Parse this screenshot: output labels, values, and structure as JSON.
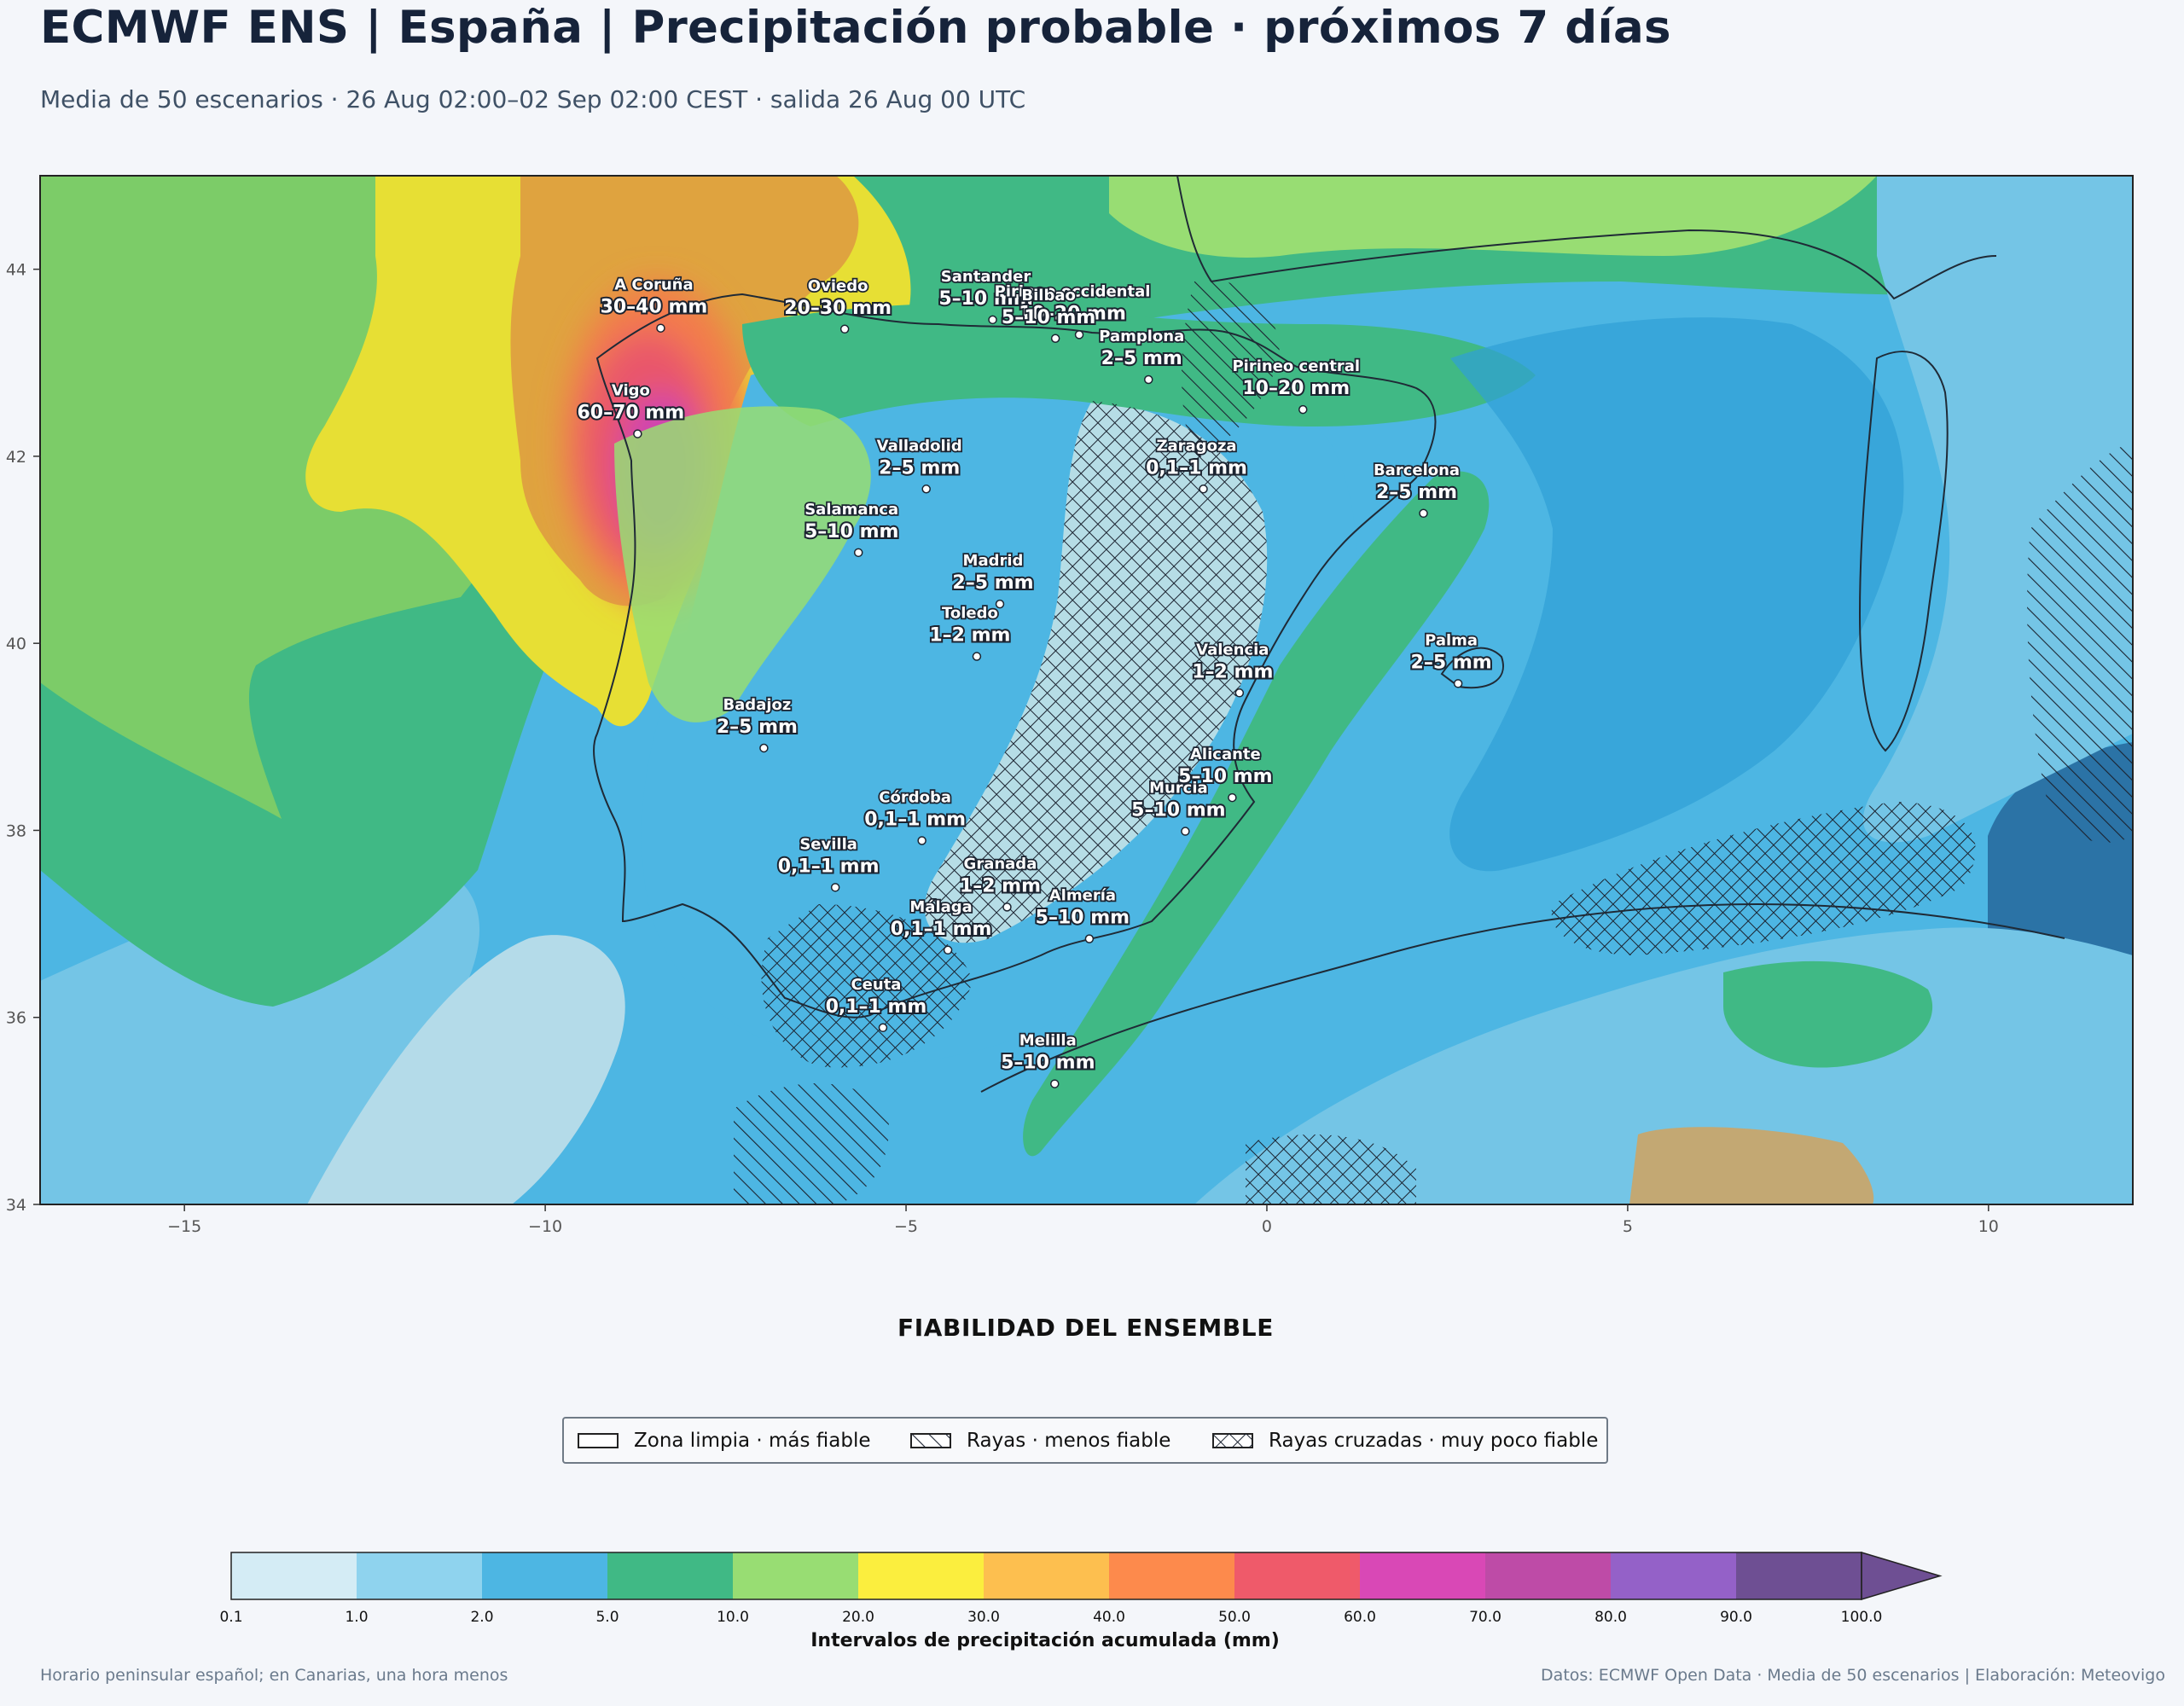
{
  "title": "ECMWF ENS | España | Precipitación probable · próximos 7 días",
  "subtitle": "Media de 50 escenarios · 26 Aug 02:00–02 Sep 02:00 CEST · salida 26 Aug 00 UTC",
  "map": {
    "lon_range": [
      -17,
      12
    ],
    "lat_range": [
      34,
      45
    ],
    "x_ticks": [
      "−15",
      "−10",
      "−5",
      "0",
      "5",
      "10"
    ],
    "x_tick_values": [
      -15,
      -10,
      -5,
      0,
      5,
      10
    ],
    "y_ticks": [
      "34",
      "36",
      "38",
      "40",
      "42",
      "44"
    ],
    "y_tick_values": [
      34,
      36,
      38,
      40,
      42,
      44
    ],
    "background_color": "#5bbde4",
    "sea_dark_color": "#2b73a6",
    "land_outline_color": "#1f2a36"
  },
  "cities": [
    {
      "name": "A Coruña",
      "value": "30–40 mm",
      "lon": -8.4,
      "lat": 43.37
    },
    {
      "name": "Oviedo",
      "value": "20–30 mm",
      "lon": -5.85,
      "lat": 43.36
    },
    {
      "name": "Santander",
      "value": "5–10 mm",
      "lon": -3.8,
      "lat": 43.46
    },
    {
      "name": "Pirineo occidental",
      "value": "10–20 mm",
      "lon": -2.6,
      "lat": 43.3
    },
    {
      "name": "Pamplona",
      "value": "2–5 mm",
      "lon": -1.64,
      "lat": 42.82
    },
    {
      "name": "Pirineo central",
      "value": "10–20 mm",
      "lon": 0.5,
      "lat": 42.5
    },
    {
      "name": "Bilbao",
      "value": "5–10 mm",
      "lon": -2.93,
      "lat": 43.26
    },
    {
      "name": "Vigo",
      "value": "60–70 mm",
      "lon": -8.72,
      "lat": 42.24
    },
    {
      "name": "Valladolid",
      "value": "2–5 mm",
      "lon": -4.72,
      "lat": 41.65
    },
    {
      "name": "Zaragoza",
      "value": "0,1–1 mm",
      "lon": -0.88,
      "lat": 41.65
    },
    {
      "name": "Barcelona",
      "value": "2–5 mm",
      "lon": 2.17,
      "lat": 41.39
    },
    {
      "name": "Salamanca",
      "value": "5–10 mm",
      "lon": -5.66,
      "lat": 40.97
    },
    {
      "name": "Madrid",
      "value": "2–5 mm",
      "lon": -3.7,
      "lat": 40.42
    },
    {
      "name": "Valencia",
      "value": "1–2 mm",
      "lon": -0.38,
      "lat": 39.47
    },
    {
      "name": "Palma",
      "value": "2–5 mm",
      "lon": 2.65,
      "lat": 39.57
    },
    {
      "name": "Toledo",
      "value": "1–2 mm",
      "lon": -4.02,
      "lat": 39.86
    },
    {
      "name": "Badajoz",
      "value": "2–5 mm",
      "lon": -6.97,
      "lat": 38.88
    },
    {
      "name": "Córdoba",
      "value": "0,1–1 mm",
      "lon": -4.78,
      "lat": 37.89
    },
    {
      "name": "Alicante",
      "value": "5–10 mm",
      "lon": -0.48,
      "lat": 38.35
    },
    {
      "name": "Murcia",
      "value": "5–10 mm",
      "lon": -1.13,
      "lat": 37.99
    },
    {
      "name": "Granada",
      "value": "1–2 mm",
      "lon": -3.6,
      "lat": 37.18
    },
    {
      "name": "Sevilla",
      "value": "0,1–1 mm",
      "lon": -5.98,
      "lat": 37.39
    },
    {
      "name": "Almería",
      "value": "5–10 mm",
      "lon": -2.46,
      "lat": 36.84
    },
    {
      "name": "Málaga",
      "value": "0,1–1 mm",
      "lon": -4.42,
      "lat": 36.72
    },
    {
      "name": "Ceuta",
      "value": "0,1–1 mm",
      "lon": -5.32,
      "lat": 35.89
    },
    {
      "name": "Melilla",
      "value": "5–10 mm",
      "lon": -2.94,
      "lat": 35.29
    }
  ],
  "reliability": {
    "title": "FIABILIDAD DEL ENSEMBLE",
    "items": [
      {
        "pattern": "none",
        "label": "Zona limpia · más fiable"
      },
      {
        "pattern": "stripes",
        "label": "Rayas · menos fiable"
      },
      {
        "pattern": "crosshatch",
        "label": "Rayas cruzadas · muy poco fiable"
      }
    ]
  },
  "colorbar": {
    "title": "Intervalos de precipitación acumulada (mm)",
    "ticks": [
      "0.1",
      "1.0",
      "2.0",
      "5.0",
      "10.0",
      "20.0",
      "30.0",
      "40.0",
      "50.0",
      "60.0",
      "70.0",
      "80.0",
      "90.0",
      "100.0"
    ],
    "colors": [
      "#d4ecf5",
      "#8fd3ee",
      "#4db6e3",
      "#40b985",
      "#98dd73",
      "#fbee3e",
      "#fdbf4f",
      "#fd8a4c",
      "#ef5a6a",
      "#d948b6",
      "#be4ba7",
      "#9461c8",
      "#6e4f93"
    ]
  },
  "footer": {
    "left": "Horario peninsular español; en Canarias, una hora menos",
    "right": "Datos: ECMWF Open Data · Media de 50 escenarios | Elaboración: Meteovigo"
  }
}
